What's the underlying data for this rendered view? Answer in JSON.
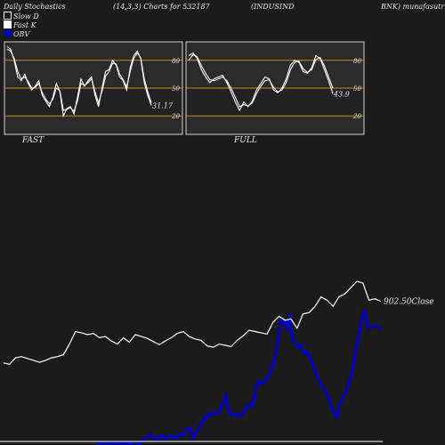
{
  "header": {
    "title": "Daily Stochastics",
    "params": "(14,3,3) Charts for 532187",
    "symbol": "(INDUSIND",
    "company": "BNK) munafasutr"
  },
  "legend": {
    "slow": "Slow  D",
    "fast": "Fast K",
    "obv": "OBV"
  },
  "colors": {
    "background": "#1b1b1b",
    "panel": "#2b2b2b",
    "level": "#c8891a",
    "price": "#ffffff",
    "obv": "#0000cc"
  },
  "chart_data": [
    {
      "type": "line",
      "panel_label": "FAST",
      "ylim": [
        0,
        100
      ],
      "levels": [
        80,
        50,
        20
      ],
      "tick_labels": [
        "80",
        "50",
        "20"
      ],
      "last_label": "31.17",
      "series": [
        {
          "values": [
            95,
            92,
            80,
            62,
            58,
            65,
            55,
            48,
            52,
            58,
            42,
            36,
            30,
            40,
            55,
            46,
            20,
            28,
            30,
            22,
            40,
            60,
            52,
            58,
            62,
            42,
            30,
            50,
            68,
            70,
            80,
            75,
            62,
            58,
            48,
            72,
            85,
            90,
            82,
            56,
            42,
            31.17
          ]
        },
        {
          "values": [
            92,
            90,
            82,
            68,
            60,
            62,
            57,
            50,
            51,
            55,
            45,
            38,
            33,
            38,
            50,
            47,
            26,
            27,
            29,
            25,
            36,
            55,
            53,
            56,
            60,
            46,
            34,
            47,
            63,
            68,
            77,
            76,
            65,
            59,
            51,
            68,
            82,
            88,
            83,
            60,
            46,
            34
          ]
        }
      ]
    },
    {
      "type": "line",
      "panel_label": "FULL",
      "ylim": [
        0,
        100
      ],
      "levels": [
        80,
        50,
        20
      ],
      "tick_labels": [
        "80",
        "50",
        "20"
      ],
      "last_label": "43.9",
      "series": [
        {
          "values": [
            85,
            88,
            82,
            70,
            62,
            56,
            60,
            62,
            64,
            56,
            46,
            35,
            26,
            35,
            30,
            36,
            48,
            55,
            62,
            60,
            48,
            45,
            50,
            60,
            75,
            80,
            78,
            68,
            66,
            72,
            85,
            82,
            70,
            58,
            43.9
          ]
        },
        {
          "values": [
            80,
            86,
            84,
            74,
            66,
            59,
            58,
            60,
            62,
            58,
            50,
            40,
            30,
            32,
            31,
            34,
            44,
            52,
            58,
            59,
            51,
            46,
            48,
            56,
            70,
            78,
            79,
            71,
            67,
            70,
            81,
            83,
            74,
            62,
            50
          ]
        }
      ]
    },
    {
      "type": "line",
      "close_label": "902.50Close",
      "series": [
        {
          "name": "Close",
          "values": [
            40,
            38,
            48,
            50,
            47,
            44,
            41,
            44,
            48,
            50,
            53,
            70,
            90,
            88,
            85,
            87,
            80,
            82,
            75,
            70,
            80,
            73,
            85,
            82,
            79,
            74,
            69,
            75,
            80,
            87,
            90,
            82,
            78,
            76,
            67,
            65,
            70,
            68,
            66,
            76,
            83,
            92,
            90,
            88,
            86,
            105,
            114,
            108,
            110,
            95,
            118,
            120,
            130,
            145,
            140,
            130,
            145,
            150,
            160,
            170,
            167,
            140,
            142,
            138
          ]
        },
        {
          "name": "OBV",
          "values": [
            -70,
            -90,
            -95,
            -92,
            -95,
            -90,
            -88,
            -85,
            -82,
            -84,
            -86,
            -85,
            -80,
            -85,
            -50,
            -80,
            -90,
            -85,
            -70,
            -75,
            -90,
            -80,
            -60,
            -55,
            -62,
            -68,
            -55,
            -50,
            -40,
            -35,
            -30,
            -28,
            -30,
            -25,
            -20,
            -15,
            -18,
            -20,
            -15,
            -10,
            -12,
            -10,
            -15,
            -20,
            -15,
            -10,
            -15,
            -25,
            -18,
            -15,
            0,
            10,
            20,
            30,
            10,
            5,
            15,
            25,
            5,
            20,
            25,
            15,
            10,
            30,
            20,
            40,
            55,
            60,
            10,
            35,
            50,
            80,
            110,
            105,
            130,
            125,
            130,
            128,
            150,
            180,
            210,
            135,
            120,
            130,
            120,
            115,
            125,
            150,
            170,
            160,
            190,
            260,
            280,
            270,
            280,
            300,
            330,
            360,
            420,
            500,
            570,
            560,
            530,
            600,
            480,
            460,
            440,
            450,
            410,
            420,
            400,
            370,
            330,
            300,
            270,
            250,
            230,
            200,
            150,
            130,
            110,
            170,
            200,
            225,
            260,
            310,
            360,
            450,
            510,
            575,
            620,
            545,
            535,
            540,
            545,
            535,
            530
          ]
        }
      ]
    }
  ]
}
